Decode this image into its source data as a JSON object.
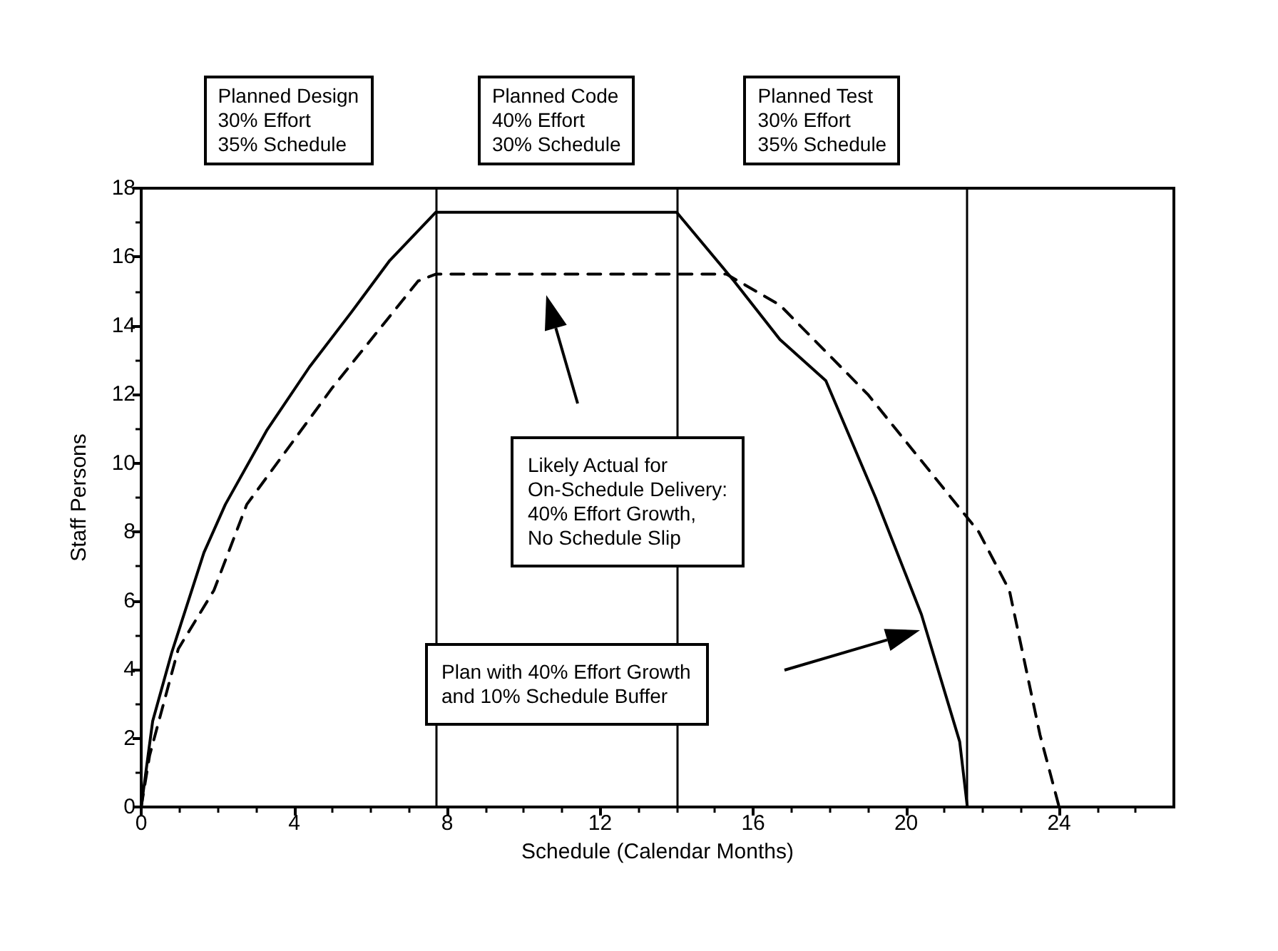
{
  "chart_data": {
    "type": "line",
    "xlabel": "Schedule (Calendar Months)",
    "ylabel": "Staff Persons",
    "xlim": [
      0,
      27
    ],
    "xticks": [
      0,
      4,
      8,
      12,
      16,
      20,
      24
    ],
    "ylim": [
      0,
      18
    ],
    "yticks": [
      0,
      2,
      4,
      6,
      8,
      10,
      12,
      14,
      16,
      18
    ],
    "grid": false,
    "marker": "none",
    "series": [
      {
        "color": "#000000",
        "line_style": "solid",
        "x": [
          0,
          0.3,
          0.8,
          1.64,
          2.2,
          3.28,
          4.4,
          5.5,
          6.5,
          7.7,
          14.0,
          15.5,
          16.7,
          17.9,
          19.2,
          20.4,
          21.4,
          21.6
        ],
        "values": [
          0,
          2.5,
          4.5,
          7.4,
          8.8,
          10.95,
          12.8,
          14.4,
          15.9,
          17.3,
          17.3,
          15.3,
          13.6,
          12.4,
          9.0,
          5.6,
          1.9,
          0
        ]
      },
      {
        "color": "#000000",
        "line_style": "dashed",
        "x": [
          0,
          0.22,
          0.97,
          1.9,
          2.76,
          5.0,
          7.24,
          7.7,
          15.3,
          16.7,
          19.0,
          21.9,
          22.7,
          23.5,
          24.0
        ],
        "values": [
          0,
          1.5,
          4.6,
          6.3,
          8.8,
          12.2,
          15.3,
          15.5,
          15.5,
          14.6,
          12.0,
          8.0,
          6.3,
          2.1,
          0
        ]
      }
    ],
    "ref_lines": [
      {
        "axis": "x",
        "value": 7.7,
        "color": "#000000"
      },
      {
        "axis": "x",
        "value": 14.0,
        "color": "#000000"
      },
      {
        "axis": "x",
        "value": 21.6,
        "color": "#000000"
      }
    ],
    "annotations": [
      "Planned Design\n30% Effort\n35% Schedule",
      "Planned Code\n40% Effort\n30% Schedule",
      "Planned Test\n30% Effort\n35% Schedule",
      "Likely Actual for\nOn-Schedule Delivery:\n40% Effort Growth,\nNo Schedule Slip",
      "Plan with 40% Effort Growth\nand 10% Schedule Buffer"
    ]
  }
}
